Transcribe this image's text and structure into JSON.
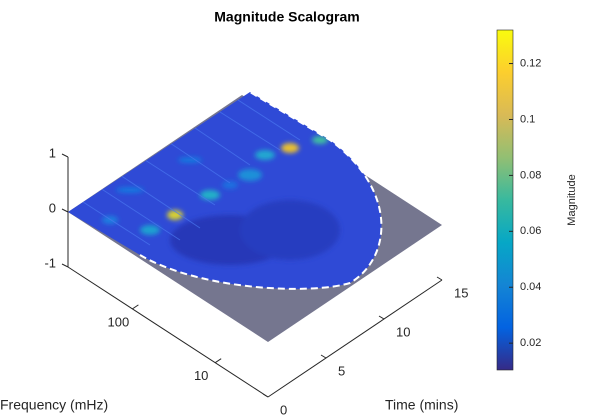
{
  "chart_data": {
    "type": "scalogram",
    "title": "Magnitude Scalogram",
    "xlabel": "Time (mins)",
    "ylabel": "Frequency (mHz)",
    "colorbar_label": "Magnitude",
    "xlim": [
      0,
      15
    ],
    "xticks": [
      0,
      5,
      10,
      15
    ],
    "ylim": [
      2.3,
      600
    ],
    "yticks": [
      10,
      100
    ],
    "yscale": "log",
    "zlim": [
      -1,
      1
    ],
    "zticks": [
      -1,
      0,
      1
    ],
    "clim": [
      0.0104,
      0.132
    ],
    "cticks": [
      0.02,
      0.04,
      0.06,
      0.08,
      0.1,
      0.12
    ]
  }
}
